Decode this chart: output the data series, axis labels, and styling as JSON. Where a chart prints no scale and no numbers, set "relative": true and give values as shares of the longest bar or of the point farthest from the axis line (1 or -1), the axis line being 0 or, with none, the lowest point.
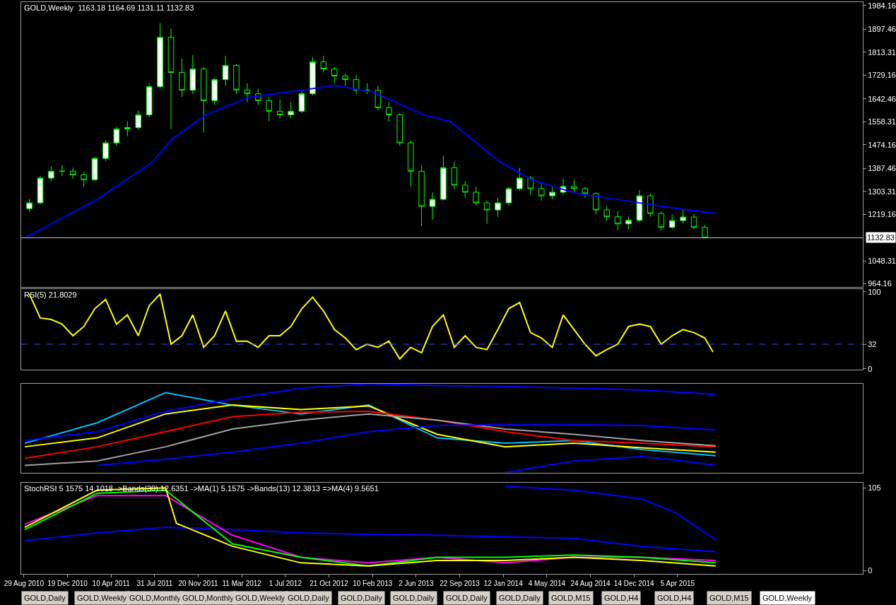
{
  "chart_data": [
    {
      "type": "candlestick",
      "title": "GOLD,Weekly  1163.18 1164.69 1131.11 1132.83",
      "color": "#00ff00",
      "x": [
        "2010-09-12",
        "2010-10-10",
        "2010-11-07",
        "2010-12-05",
        "2011-01-02",
        "2011-01-30",
        "2011-02-27",
        "2011-03-27",
        "2011-04-24",
        "2011-05-22",
        "2011-06-19",
        "2011-07-17",
        "2011-08-14",
        "2011-09-11",
        "2011-10-09",
        "2011-11-06",
        "2011-12-04",
        "2012-01-01",
        "2012-01-29",
        "2012-02-26",
        "2012-03-25",
        "2012-04-22",
        "2012-05-20",
        "2012-06-17",
        "2012-07-15",
        "2012-08-12",
        "2012-09-09",
        "2012-10-07",
        "2012-11-04",
        "2012-12-02",
        "2012-12-30",
        "2013-01-27",
        "2013-02-24",
        "2013-03-24",
        "2013-04-21",
        "2013-05-19",
        "2013-06-16",
        "2013-07-14",
        "2013-08-11",
        "2013-09-08",
        "2013-10-06",
        "2013-11-03",
        "2013-12-01",
        "2013-12-29",
        "2014-01-26",
        "2014-02-23",
        "2014-03-23",
        "2014-04-20",
        "2014-05-18",
        "2014-06-15",
        "2014-07-13",
        "2014-08-10",
        "2014-09-07",
        "2014-10-05",
        "2014-11-02",
        "2014-11-30",
        "2014-12-28",
        "2015-01-25",
        "2015-02-22",
        "2015-03-22",
        "2015-04-19",
        "2015-05-17",
        "2015-06-14"
      ],
      "ohlc": [
        [
          1240,
          1275,
          1230,
          1261
        ],
        [
          1261,
          1360,
          1255,
          1352
        ],
        [
          1352,
          1395,
          1340,
          1377
        ],
        [
          1377,
          1400,
          1360,
          1377
        ],
        [
          1377,
          1390,
          1350,
          1364
        ],
        [
          1364,
          1375,
          1320,
          1346
        ],
        [
          1346,
          1430,
          1340,
          1424
        ],
        [
          1424,
          1490,
          1415,
          1481
        ],
        [
          1481,
          1540,
          1470,
          1532
        ],
        [
          1532,
          1560,
          1505,
          1537
        ],
        [
          1537,
          1600,
          1530,
          1584
        ],
        [
          1584,
          1700,
          1575,
          1687
        ],
        [
          1687,
          1920,
          1680,
          1868
        ],
        [
          1868,
          1900,
          1532,
          1739
        ],
        [
          1739,
          1790,
          1650,
          1674
        ],
        [
          1674,
          1803,
          1660,
          1752
        ],
        [
          1752,
          1760,
          1519,
          1636
        ],
        [
          1636,
          1720,
          1620,
          1713
        ],
        [
          1713,
          1800,
          1690,
          1765
        ],
        [
          1765,
          1770,
          1660,
          1675
        ],
        [
          1675,
          1700,
          1630,
          1661
        ],
        [
          1661,
          1680,
          1620,
          1636
        ],
        [
          1636,
          1650,
          1560,
          1597
        ],
        [
          1597,
          1640,
          1570,
          1584
        ],
        [
          1584,
          1630,
          1570,
          1597
        ],
        [
          1597,
          1670,
          1590,
          1661
        ],
        [
          1661,
          1795,
          1655,
          1778
        ],
        [
          1778,
          1800,
          1740,
          1752
        ],
        [
          1752,
          1760,
          1700,
          1726
        ],
        [
          1726,
          1735,
          1690,
          1713
        ],
        [
          1713,
          1730,
          1660,
          1674
        ],
        [
          1674,
          1700,
          1660,
          1674
        ],
        [
          1674,
          1690,
          1600,
          1610
        ],
        [
          1610,
          1630,
          1560,
          1584
        ],
        [
          1584,
          1590,
          1470,
          1481
        ],
        [
          1481,
          1490,
          1321,
          1377
        ],
        [
          1377,
          1400,
          1176,
          1248
        ],
        [
          1248,
          1300,
          1200,
          1274
        ],
        [
          1274,
          1434,
          1270,
          1390
        ],
        [
          1390,
          1410,
          1310,
          1326
        ],
        [
          1326,
          1340,
          1280,
          1300
        ],
        [
          1300,
          1320,
          1250,
          1261
        ],
        [
          1261,
          1270,
          1184,
          1235
        ],
        [
          1235,
          1280,
          1210,
          1261
        ],
        [
          1261,
          1320,
          1250,
          1313
        ],
        [
          1313,
          1390,
          1305,
          1352
        ],
        [
          1352,
          1360,
          1290,
          1313
        ],
        [
          1313,
          1330,
          1270,
          1287
        ],
        [
          1287,
          1320,
          1275,
          1300
        ],
        [
          1300,
          1350,
          1290,
          1321
        ],
        [
          1321,
          1345,
          1300,
          1313
        ],
        [
          1313,
          1320,
          1280,
          1295
        ],
        [
          1295,
          1300,
          1220,
          1235
        ],
        [
          1235,
          1250,
          1195,
          1210
        ],
        [
          1210,
          1230,
          1160,
          1184
        ],
        [
          1184,
          1210,
          1165,
          1197
        ],
        [
          1197,
          1308,
          1190,
          1287
        ],
        [
          1287,
          1295,
          1210,
          1222
        ],
        [
          1222,
          1230,
          1160,
          1171
        ],
        [
          1171,
          1220,
          1165,
          1196
        ],
        [
          1196,
          1240,
          1185,
          1209
        ],
        [
          1209,
          1220,
          1165,
          1171
        ],
        [
          1171,
          1180,
          1131.11,
          1132.83
        ]
      ],
      "series": [
        {
          "type": "line",
          "color": "#0000ff",
          "x": [
            "2010-08-31",
            "2011-03-05",
            "2011-07-23",
            "2011-09-13",
            "2011-12-10",
            "2012-03-27",
            "2012-08-10",
            "2012-11-05",
            "2013-02-11",
            "2013-06-21",
            "2013-08-30",
            "2013-12-31",
            "2014-03-29",
            "2014-07-15",
            "2014-12-14",
            "2015-03-31",
            "2015-07-12"
          ],
          "values": [
            1132,
            1274,
            1408,
            1494,
            1584,
            1648,
            1674,
            1692,
            1667,
            1584,
            1558,
            1414,
            1344,
            1297,
            1264,
            1241,
            1222
          ]
        }
      ],
      "xlim": [
        "2010-08-22",
        "2016-07-24"
      ],
      "ylim": [
        954,
        1997
      ],
      "yticks": [
        964.16,
        1048.31,
        1219.16,
        1303.31,
        1387.46,
        1474.16,
        1558.31,
        1642.46,
        1729.16,
        1813.31,
        1897.46,
        1984.16
      ],
      "ref_lines": [
        {
          "axis": "y",
          "value": 1132.83,
          "label": "1132.83",
          "color": "#c0c0c0",
          "line_style": "solid"
        }
      ],
      "tick_labels": "y"
    },
    {
      "type": "line",
      "title": "RSI(5) 21.8029",
      "series": [
        {
          "color": "#ffff00",
          "x": [
            "2010-09-12",
            "2010-10-10",
            "2010-11-07",
            "2010-12-05",
            "2011-01-02",
            "2011-01-30",
            "2011-02-27",
            "2011-03-27",
            "2011-04-24",
            "2011-05-22",
            "2011-06-19",
            "2011-07-17",
            "2011-08-14",
            "2011-09-11",
            "2011-10-09",
            "2011-11-06",
            "2011-12-04",
            "2012-01-01",
            "2012-01-29",
            "2012-02-26",
            "2012-03-25",
            "2012-04-22",
            "2012-05-20",
            "2012-06-17",
            "2012-07-15",
            "2012-08-12",
            "2012-09-09",
            "2012-10-07",
            "2012-11-04",
            "2012-12-02",
            "2012-12-30",
            "2013-01-27",
            "2013-02-24",
            "2013-03-24",
            "2013-04-21",
            "2013-05-19",
            "2013-06-16",
            "2013-07-14",
            "2013-08-11",
            "2013-09-08",
            "2013-10-06",
            "2013-11-03",
            "2013-12-01",
            "2013-12-29",
            "2014-01-26",
            "2014-02-23",
            "2014-03-23",
            "2014-04-20",
            "2014-05-18",
            "2014-06-15",
            "2014-07-13",
            "2014-08-10",
            "2014-09-07",
            "2014-10-05",
            "2014-11-02",
            "2014-11-30",
            "2014-12-28",
            "2015-01-25",
            "2015-02-22",
            "2015-03-22",
            "2015-04-19",
            "2015-05-17",
            "2015-06-14",
            "2015-07-05"
          ],
          "values": [
            97,
            66,
            64,
            58,
            43,
            55,
            78,
            90,
            58,
            70,
            43,
            82,
            97,
            32,
            43,
            70,
            28,
            43,
            75,
            36,
            36,
            28,
            43,
            43,
            55,
            78,
            93,
            75,
            51,
            40,
            25,
            32,
            28,
            36,
            13,
            28,
            21,
            55,
            70,
            28,
            43,
            28,
            25,
            51,
            78,
            86,
            47,
            40,
            28,
            70,
            51,
            32,
            17,
            25,
            32,
            55,
            58,
            55,
            32,
            43,
            51,
            47,
            40,
            22
          ]
        }
      ],
      "xlim": [
        "2010-08-22",
        "2016-07-24"
      ],
      "ylim": [
        -1,
        103
      ],
      "yticks": [
        0,
        32,
        100
      ],
      "ref_lines": [
        {
          "axis": "y",
          "value": 32,
          "color": "#4040ff",
          "line_style": "dashed"
        }
      ],
      "tick_labels": "y"
    },
    {
      "type": "line",
      "relative": true,
      "series": [
        {
          "color": "#00bfff",
          "x": [
            "2010-08-31",
            "2011-03-05",
            "2011-08-28",
            "2012-02-16",
            "2012-08-10",
            "2013-01-31",
            "2013-07-26",
            "2014-01-17",
            "2014-07-12",
            "2015-01-02",
            "2015-07-12"
          ],
          "values": [
            0.33,
            0.56,
            0.9,
            0.76,
            0.66,
            0.76,
            0.39,
            0.33,
            0.36,
            0.26,
            0.19
          ]
        },
        {
          "color": "#ffff00",
          "x": [
            "2010-08-31",
            "2011-03-05",
            "2011-08-28",
            "2012-02-16",
            "2012-08-10",
            "2013-01-31",
            "2013-07-26",
            "2014-01-17",
            "2014-07-12",
            "2015-01-02",
            "2015-07-12"
          ],
          "values": [
            0.29,
            0.39,
            0.66,
            0.76,
            0.71,
            0.75,
            0.43,
            0.29,
            0.33,
            0.28,
            0.23
          ]
        },
        {
          "color": "#ff0000",
          "x": [
            "2010-08-31",
            "2011-03-05",
            "2011-08-28",
            "2012-02-16",
            "2012-08-10",
            "2013-01-31",
            "2013-07-26",
            "2014-01-17",
            "2014-07-12",
            "2015-01-02",
            "2015-07-12"
          ],
          "values": [
            0.16,
            0.29,
            0.46,
            0.63,
            0.68,
            0.69,
            0.59,
            0.46,
            0.36,
            0.33,
            0.29
          ]
        },
        {
          "color": "#a0a0a0",
          "x": [
            "2010-08-31",
            "2011-03-05",
            "2011-08-28",
            "2012-02-16",
            "2012-08-10",
            "2013-01-31",
            "2013-07-26",
            "2014-01-17",
            "2014-07-12",
            "2015-01-02",
            "2015-07-12"
          ],
          "values": [
            0.08,
            0.13,
            0.29,
            0.49,
            0.59,
            0.66,
            0.59,
            0.49,
            0.43,
            0.36,
            0.3
          ]
        },
        {
          "color": "#0000ff",
          "x": [
            "2010-08-31",
            "2011-03-05",
            "2011-08-28",
            "2012-02-16",
            "2012-08-10",
            "2013-01-31",
            "2013-07-26",
            "2014-01-17",
            "2014-07-12",
            "2015-01-02",
            "2015-07-12"
          ],
          "values": [
            0.36,
            0.46,
            0.69,
            0.83,
            0.95,
            1.0,
            0.98,
            0.97,
            0.95,
            0.93,
            0.88
          ]
        },
        {
          "color": "#0000ff",
          "x": [
            "2011-03-05",
            "2011-08-28",
            "2012-02-16",
            "2012-08-10",
            "2013-01-31",
            "2013-07-26",
            "2014-01-17",
            "2014-07-12",
            "2015-01-02",
            "2015-07-12"
          ],
          "values": [
            0.08,
            0.15,
            0.23,
            0.33,
            0.46,
            0.53,
            0.54,
            0.54,
            0.53,
            0.48
          ]
        },
        {
          "color": "#0000ff",
          "x": [
            "2014-01-17",
            "2014-07-12",
            "2015-01-02",
            "2015-04-01",
            "2015-07-12"
          ],
          "values": [
            0,
            0.13,
            0.18,
            0.14,
            0.08
          ]
        }
      ],
      "xlim": [
        "2010-08-22",
        "2016-07-24"
      ],
      "tick_labels": false
    },
    {
      "type": "line",
      "title": "StochRSI 5 1575 14.1018 ->Bands(30) 12.6351 ->MA(1) 5.1575 ->Bands(13) 12.3813 =>MA(4) 9.5651",
      "series": [
        {
          "color": "#0000ff",
          "x": [
            "2010-08-31",
            "2011-03-05",
            "2011-08-28",
            "2012-02-16",
            "2012-08-10",
            "2013-01-31",
            "2013-07-26",
            "2014-01-17",
            "2014-07-12",
            "2015-01-02",
            "2015-07-12"
          ],
          "values": [
            38,
            48,
            55,
            52,
            48,
            46,
            45,
            43,
            41,
            31,
            24
          ]
        },
        {
          "color": "#0000ff",
          "x": [
            "2014-01-17",
            "2014-07-12",
            "2015-01-02",
            "2015-04-01",
            "2015-07-12"
          ],
          "values": [
            107,
            102,
            91,
            73,
            39
          ]
        },
        {
          "color": "#ff00ff",
          "x": [
            "2010-08-31",
            "2011-03-05",
            "2011-08-28",
            "2012-02-16",
            "2012-08-10",
            "2013-01-31",
            "2013-07-26",
            "2014-01-17",
            "2014-07-12",
            "2015-01-02",
            "2015-07-12"
          ],
          "values": [
            59,
            95,
            95,
            45,
            17,
            10,
            17,
            10,
            17,
            17,
            13
          ]
        },
        {
          "color": "#00ff00",
          "x": [
            "2010-08-31",
            "2011-03-05",
            "2011-08-28",
            "2012-02-16",
            "2012-08-10",
            "2013-01-31",
            "2013-07-26",
            "2014-01-17",
            "2014-07-12",
            "2015-01-02",
            "2015-07-12"
          ],
          "values": [
            52,
            98,
            102,
            34,
            17,
            6,
            17,
            17,
            20,
            17,
            10
          ]
        },
        {
          "color": "#ffff00",
          "x": [
            "2010-08-31",
            "2011-03-05",
            "2011-08-28",
            "2011-09-25",
            "2012-02-16",
            "2012-08-10",
            "2013-01-31",
            "2013-07-26",
            "2014-01-17",
            "2014-07-12",
            "2015-01-02",
            "2015-07-12"
          ],
          "values": [
            55,
            102,
            105,
            60,
            31,
            10,
            6,
            13,
            13,
            17,
            13,
            6
          ]
        }
      ],
      "xlim": [
        "2010-08-22",
        "2016-07-24"
      ],
      "ylim": [
        -4,
        111
      ],
      "yticks": [
        0,
        105
      ],
      "xticks": [
        {
          "value": "2010-08-29",
          "label": "29 Aug 2010"
        },
        {
          "value": "2010-12-19",
          "label": "19 Dec 2010"
        },
        {
          "value": "2011-04-10",
          "label": "10 Apr 2011"
        },
        {
          "value": "2011-07-31",
          "label": "31 Jul 2011"
        },
        {
          "value": "2011-11-20",
          "label": "20 Nov 2011"
        },
        {
          "value": "2012-03-11",
          "label": "11 Mar 2012"
        },
        {
          "value": "2012-07-01",
          "label": "1 Jul 2012"
        },
        {
          "value": "2012-10-21",
          "label": "21 Oct 2012"
        },
        {
          "value": "2013-02-10",
          "label": "10 Feb 2013"
        },
        {
          "value": "2013-06-02",
          "label": "2 Jun 2013"
        },
        {
          "value": "2013-09-22",
          "label": "22 Sep 2013"
        },
        {
          "value": "2014-01-12",
          "label": "12 Jan 2014"
        },
        {
          "value": "2014-05-04",
          "label": "4 May 2014"
        },
        {
          "value": "2014-08-24",
          "label": "24 Aug 2014"
        },
        {
          "value": "2014-12-14",
          "label": "14 Dec 2014"
        },
        {
          "value": "2015-04-05",
          "label": "5 Apr 2015"
        }
      ],
      "annotations": [
        "GOLD,Daily",
        "GOLD,Weekly",
        "GOLD,Monthly",
        "GOLD,Monthly",
        "GOLD,Weekly",
        "GOLD,Daily",
        "GOLD,Daily",
        "GOLD,Daily",
        "GOLD,Daily",
        "GOLD,Daily",
        "GOLD,M15",
        "GOLD,H4",
        "GOLD,H4",
        "GOLD,M15",
        "GOLD,Weekly"
      ]
    }
  ]
}
